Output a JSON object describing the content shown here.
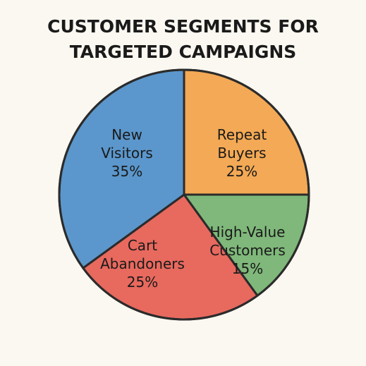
{
  "chart_data": {
    "type": "pie",
    "title_lines": [
      "CUSTOMER SEGMENTS FOR",
      "TARGETED CAMPAIGNS"
    ],
    "slices": [
      {
        "label_lines": [
          "Repeat",
          "Buyers"
        ],
        "value_label": "25%",
        "value": 25,
        "color": "#f3a955"
      },
      {
        "label_lines": [
          "High-Value",
          "Customers"
        ],
        "value_label": "15%",
        "value": 15,
        "color": "#7fb87a"
      },
      {
        "label_lines": [
          "Cart",
          "Abandoners"
        ],
        "value_label": "25%",
        "value": 25,
        "color": "#e8695e"
      },
      {
        "label_lines": [
          "New",
          "Visitors"
        ],
        "value_label": "35%",
        "value": 35,
        "color": "#5b97cc"
      }
    ],
    "legend": "none"
  }
}
